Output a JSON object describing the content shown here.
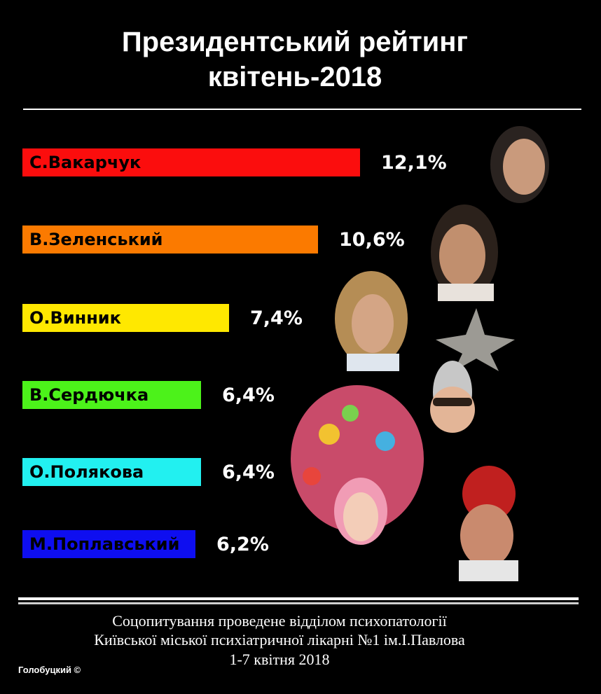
{
  "chart_data": {
    "type": "bar",
    "orientation": "horizontal",
    "title": "Президентський рейтинг квітень-2018",
    "title_lines": [
      "Президентський рейтинг",
      "квітень-2018"
    ],
    "categories": [
      "С.Вакарчук",
      "В.Зеленський",
      "О.Винник",
      "В.Сердючка",
      "О.Полякова",
      "М.Поплавський"
    ],
    "values": [
      12.1,
      10.6,
      7.4,
      6.4,
      6.4,
      6.2
    ],
    "value_labels": [
      "12,1%",
      "10,6%",
      "7,4%",
      "6,4%",
      "6,4%",
      "6,2%"
    ],
    "colors": [
      "#fb0d0d",
      "#fb7a00",
      "#ffe800",
      "#4cf21a",
      "#22f0f0",
      "#0e0ef0"
    ],
    "xlim": [
      0,
      12.1
    ],
    "grid": false,
    "legend": "none"
  },
  "footer": {
    "lines": [
      "Соцопитування проведене відділом психопатології",
      "Київської міської психіатричної лікарні №1 ім.І.Павлова",
      "1-7 квітня 2018"
    ],
    "signature": "Голобуцкий ©"
  }
}
